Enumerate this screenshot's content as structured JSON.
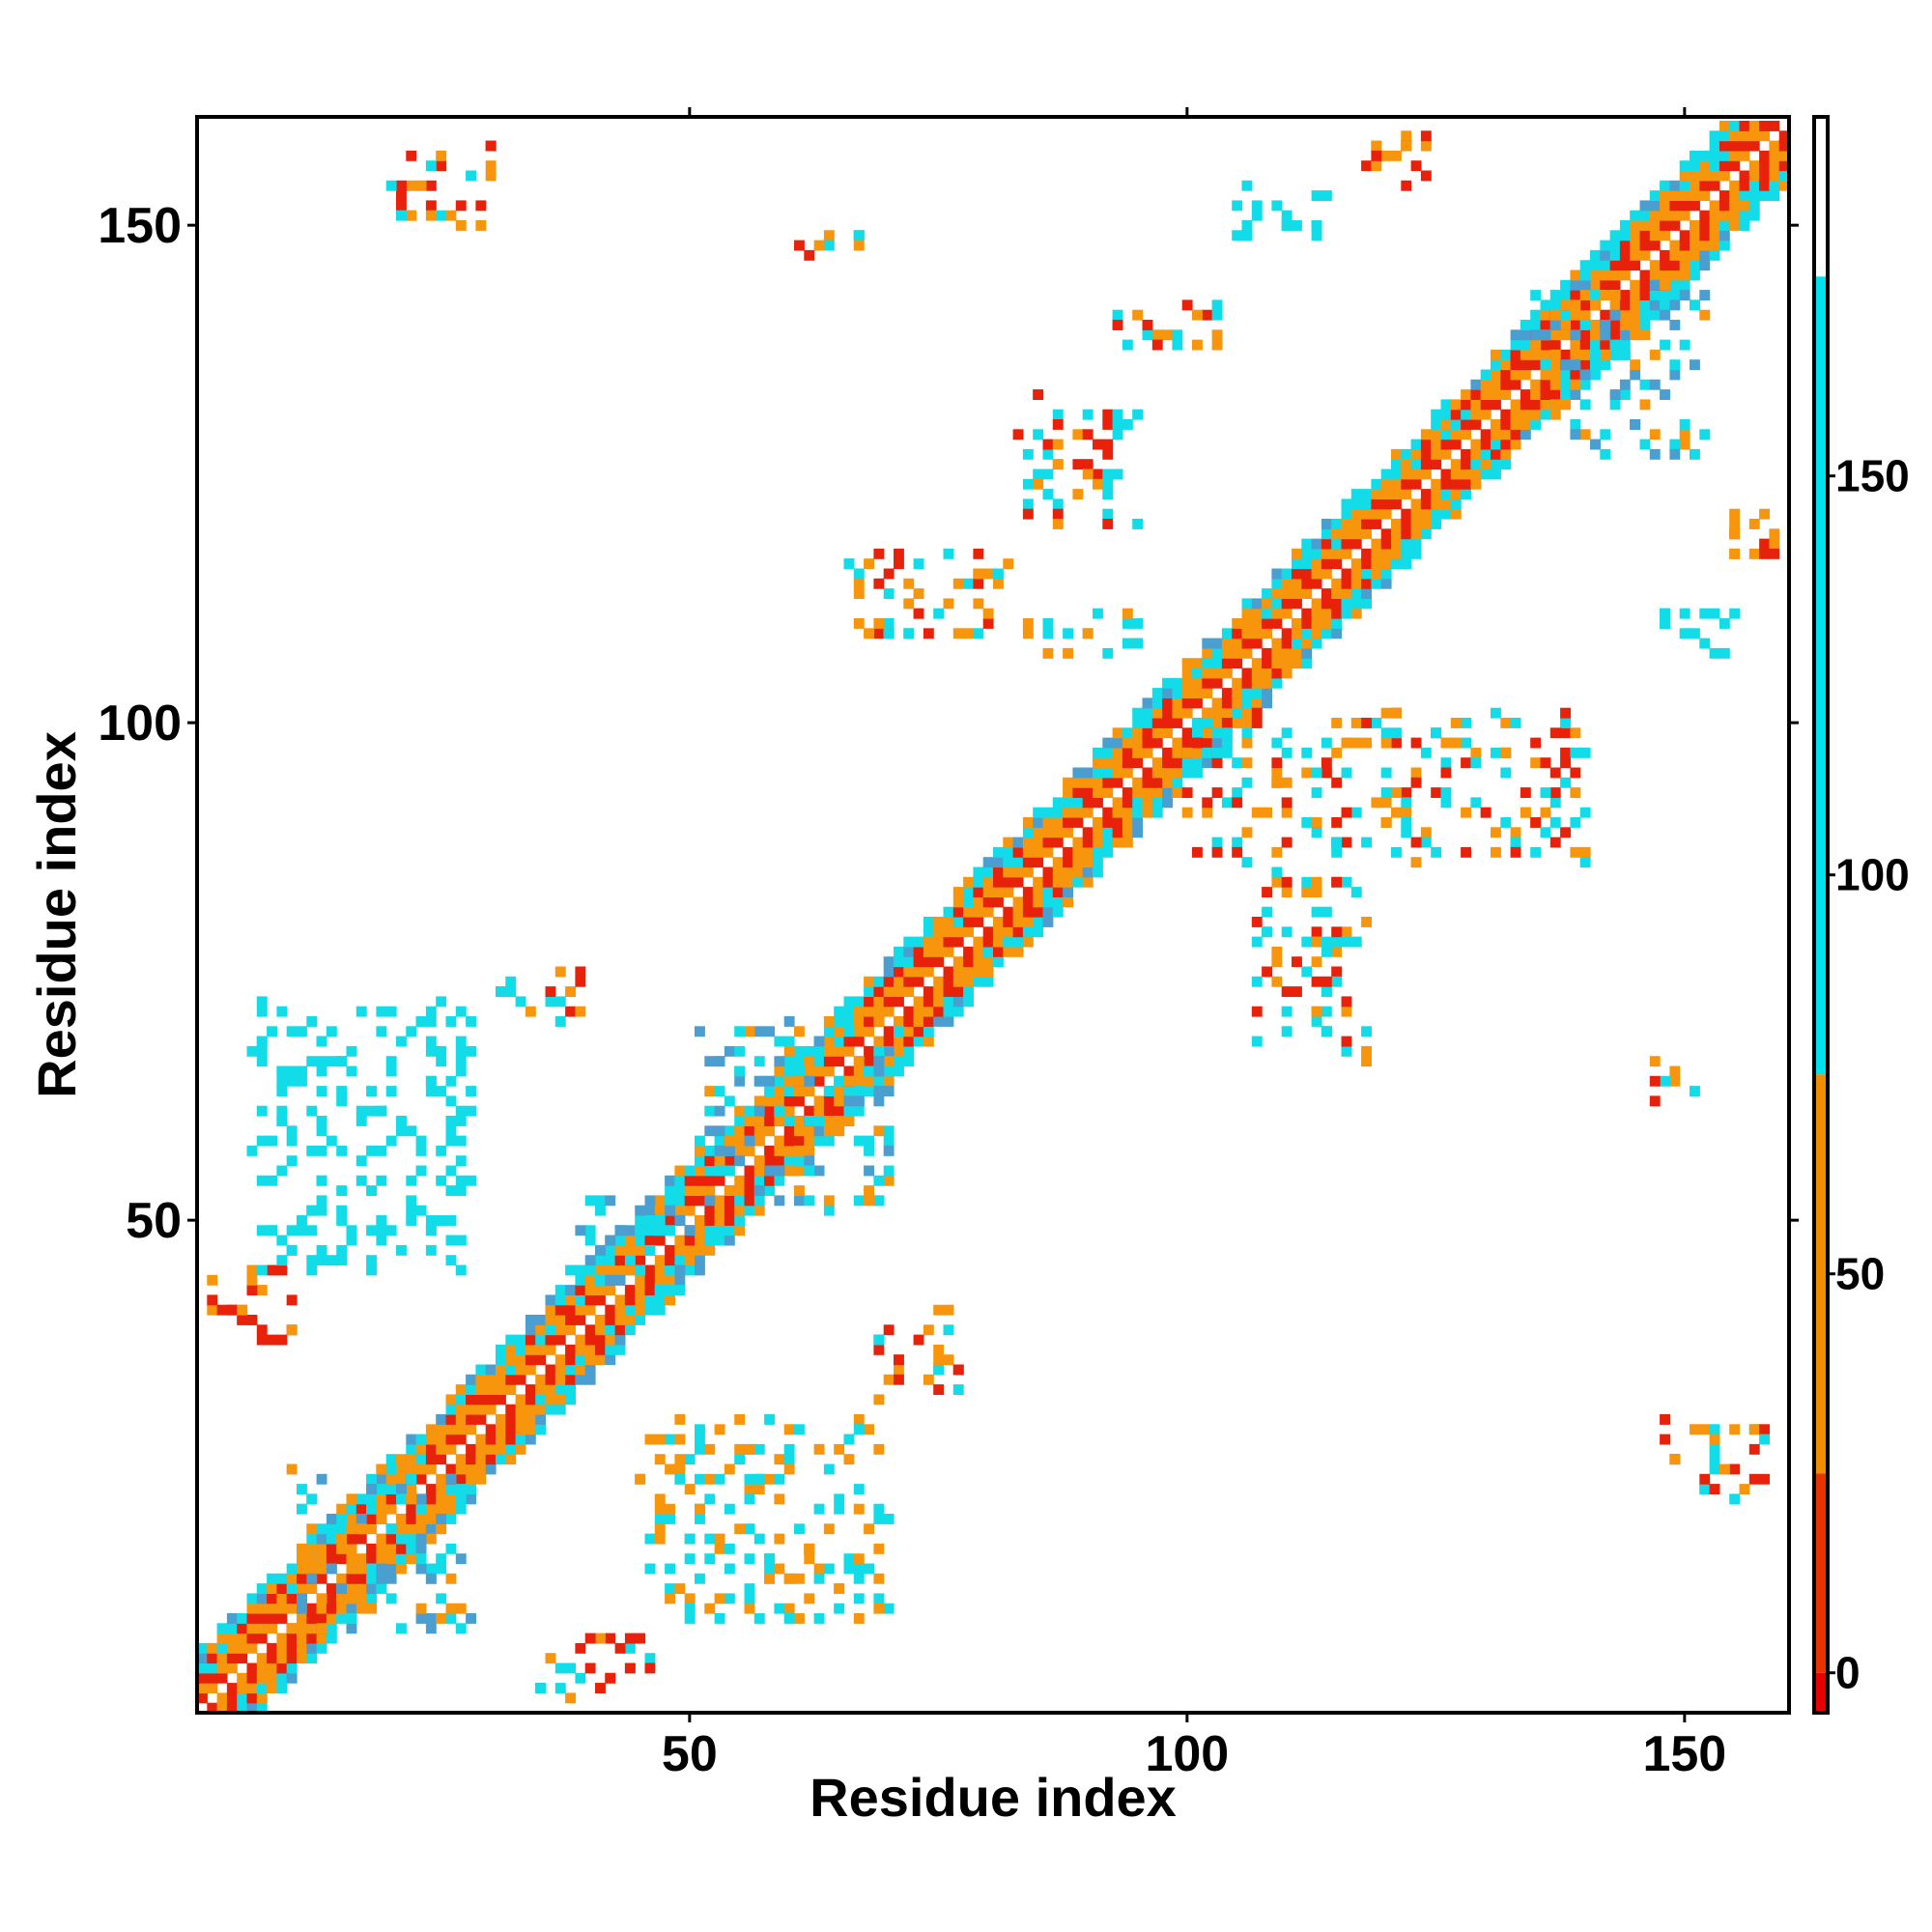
{
  "chart_data": {
    "type": "heatmap",
    "title": "",
    "xlabel": "Residue index",
    "ylabel": "Residue index",
    "xlim": [
      1,
      160
    ],
    "ylim": [
      1,
      160
    ],
    "x_ticks": [
      50,
      100,
      150
    ],
    "y_ticks": [
      50,
      100,
      150
    ],
    "grid": false,
    "legend": "colorbar-right",
    "colorbar": {
      "range": [
        -5,
        195
      ],
      "ticks": [
        0,
        50,
        100,
        150
      ],
      "bands": [
        {
          "from": -5,
          "to": 0,
          "color": "#e60000"
        },
        {
          "from": 0,
          "to": 25,
          "color": "#e83300"
        },
        {
          "from": 25,
          "to": 75,
          "color": "#f28c00"
        },
        {
          "from": 75,
          "to": 175,
          "color": "#00e1ee"
        },
        {
          "from": 175,
          "to": 195,
          "color": "#ffffff"
        }
      ]
    },
    "palette": {
      "red": "#e8210b",
      "orange": "#f7950d",
      "cyan": "#12dce8",
      "blue": "#4a9fd0"
    },
    "description_of_pattern": null,
    "diagonal_band": {
      "center_offset": 0,
      "half_width": 6
    },
    "contact_patches": [
      {
        "x": [
          20,
          30
        ],
        "y": [
          150,
          158
        ],
        "colors": [
          "cyan",
          "orange",
          "red"
        ]
      },
      {
        "x": [
          61,
          67
        ],
        "y": [
          147,
          150
        ],
        "colors": [
          "orange",
          "red",
          "cyan"
        ]
      },
      {
        "x": [
          117,
          125
        ],
        "y": [
          154,
          159
        ],
        "colors": [
          "orange",
          "red"
        ]
      },
      {
        "x": [
          105,
          115
        ],
        "y": [
          149,
          154
        ],
        "colors": [
          "cyan"
        ]
      },
      {
        "x": [
          92,
          103
        ],
        "y": [
          137,
          142
        ],
        "colors": [
          "orange",
          "red",
          "cyan"
        ]
      },
      {
        "x": [
          83,
          95
        ],
        "y": [
          120,
          133
        ],
        "colors": [
          "orange",
          "red",
          "cyan"
        ]
      },
      {
        "x": [
          66,
          82
        ],
        "y": [
          108,
          117
        ],
        "colors": [
          "orange",
          "red",
          "cyan"
        ]
      },
      {
        "x": [
          84,
          96
        ],
        "y": [
          107,
          111
        ],
        "colors": [
          "orange",
          "cyan"
        ]
      },
      {
        "x": [
          135,
          152
        ],
        "y": [
          127,
          145
        ],
        "colors": [
          "cyan",
          "blue",
          "orange"
        ]
      },
      {
        "x": [
          154,
          160
        ],
        "y": [
          116,
          122
        ],
        "colors": [
          "orange",
          "red"
        ]
      },
      {
        "x": [
          147,
          155
        ],
        "y": [
          107,
          112
        ],
        "colors": [
          "cyan"
        ]
      },
      {
        "x": [
          100,
          140
        ],
        "y": [
          86,
          101
        ],
        "colors": [
          "orange",
          "red",
          "cyan"
        ]
      },
      {
        "x": [
          107,
          118
        ],
        "y": [
          66,
          85
        ],
        "colors": [
          "orange",
          "red",
          "cyan"
        ]
      },
      {
        "x": [
          147,
          151
        ],
        "y": [
          62,
          66
        ],
        "colors": [
          "orange",
          "red",
          "cyan"
        ]
      },
      {
        "x": [
          2,
          10
        ],
        "y": [
          37,
          46
        ],
        "colors": [
          "orange",
          "red"
        ]
      },
      {
        "x": [
          6,
          28
        ],
        "y": [
          45,
          72
        ],
        "colors": [
          "cyan"
        ]
      },
      {
        "x": [
          31,
          40
        ],
        "y": [
          70,
          75
        ],
        "colors": [
          "cyan",
          "red",
          "orange"
        ]
      },
      {
        "x": [
          51,
          71
        ],
        "y": [
          51,
          70
        ],
        "colors": [
          "cyan",
          "blue",
          "orange"
        ]
      },
      {
        "x": [
          38,
          50
        ],
        "y": [
          43,
          52
        ],
        "colors": [
          "cyan",
          "blue"
        ]
      },
      {
        "x": [
          69,
          77
        ],
        "y": [
          32,
          41
        ],
        "colors": [
          "red",
          "orange",
          "cyan"
        ]
      },
      {
        "x": [
          45,
          70
        ],
        "y": [
          10,
          30
        ],
        "colors": [
          "cyan",
          "orange"
        ]
      },
      {
        "x": [
          34,
          46
        ],
        "y": [
          2,
          8
        ],
        "colors": [
          "orange",
          "red",
          "cyan"
        ]
      },
      {
        "x": [
          10,
          28
        ],
        "y": [
          9,
          25
        ],
        "colors": [
          "cyan",
          "blue",
          "orange"
        ]
      },
      {
        "x": [
          148,
          158
        ],
        "y": [
          22,
          30
        ],
        "colors": [
          "orange",
          "red",
          "cyan"
        ]
      }
    ]
  }
}
